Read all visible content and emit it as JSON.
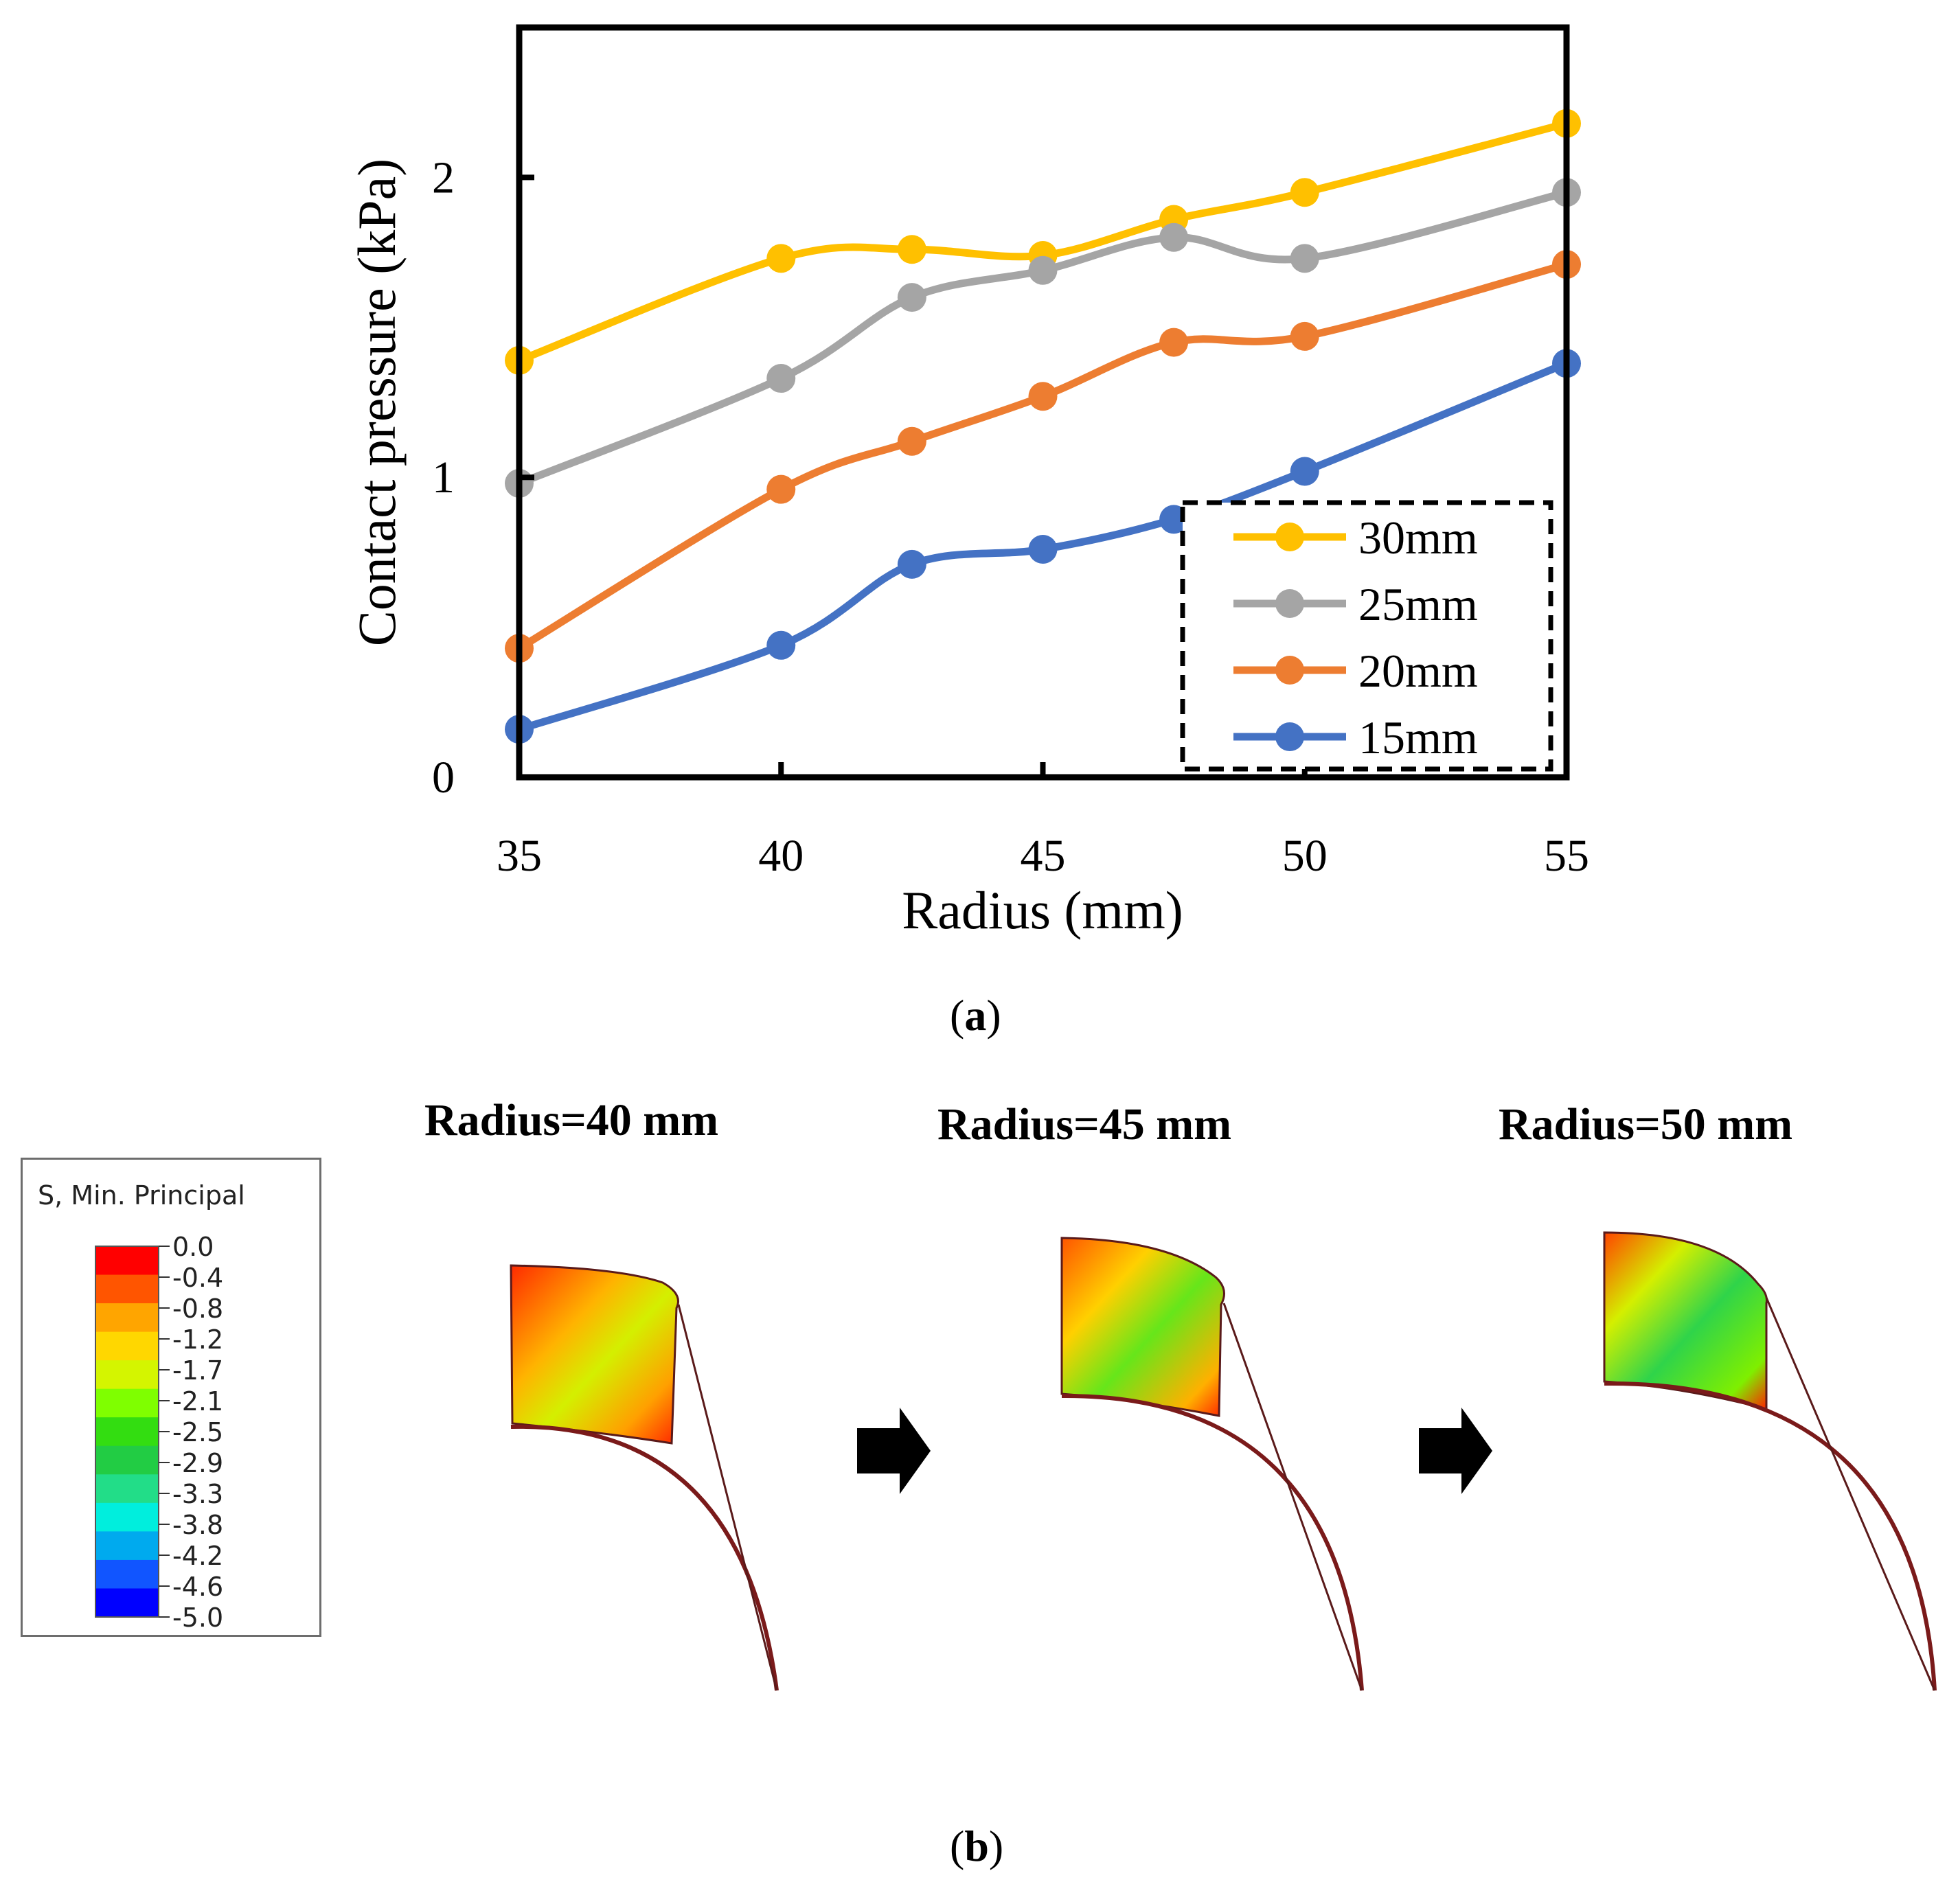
{
  "chart_data": {
    "type": "line",
    "xlabel": "Radius (mm)",
    "ylabel": "Contact pressure (kPa)",
    "xlim": [
      35,
      55
    ],
    "ylim": [
      0,
      2.5
    ],
    "xticks": [
      "35",
      "40",
      "45",
      "50",
      "55"
    ],
    "yticks": [
      "0",
      "1",
      "2"
    ],
    "x": [
      35,
      40,
      42.5,
      45,
      47.5,
      50,
      55
    ],
    "legend_position": "bottom-right",
    "series": [
      {
        "name": "30mm",
        "color": "#FFC000",
        "values": [
          1.39,
          1.73,
          1.76,
          1.74,
          1.86,
          1.95,
          2.18
        ]
      },
      {
        "name": "25mm",
        "color": "#A5A5A5",
        "values": [
          0.98,
          1.33,
          1.6,
          1.69,
          1.8,
          1.73,
          1.95
        ]
      },
      {
        "name": "20mm",
        "color": "#ED7D31",
        "values": [
          0.43,
          0.96,
          1.12,
          1.27,
          1.45,
          1.47,
          1.71
        ]
      },
      {
        "name": "15mm",
        "color": "#4472C4",
        "values": [
          0.16,
          0.44,
          0.71,
          0.76,
          0.86,
          1.02,
          1.38
        ]
      }
    ]
  },
  "labels": {
    "panel_a_open": "(",
    "panel_a_letter": "a",
    "panel_a_close": ")",
    "panel_b_open": "(",
    "panel_b_letter": "b",
    "panel_b_close": ")"
  },
  "fem": {
    "titles": [
      "Radius=40 mm",
      "Radius=45 mm",
      "Radius=50 mm"
    ],
    "colorbar_title": "S, Min. Principal",
    "colorbar_ticks": [
      "0.0",
      "-0.4",
      "-0.8",
      "-1.2",
      "-1.7",
      "-2.1",
      "-2.5",
      "-2.9",
      "-3.3",
      "-3.8",
      "-4.2",
      "-4.6",
      "-5.0"
    ],
    "colorbar_colors": [
      "#FF0000",
      "#FF5500",
      "#FFA500",
      "#FFD700",
      "#D4F500",
      "#7FFF00",
      "#33DD11",
      "#22CC44",
      "#22DD88",
      "#00EEDD",
      "#00AAEE",
      "#1155FF",
      "#0000FF"
    ]
  },
  "colors": {
    "axis": "#000000",
    "contact_arc": "#7a1a1a",
    "arrow": "#000000"
  }
}
